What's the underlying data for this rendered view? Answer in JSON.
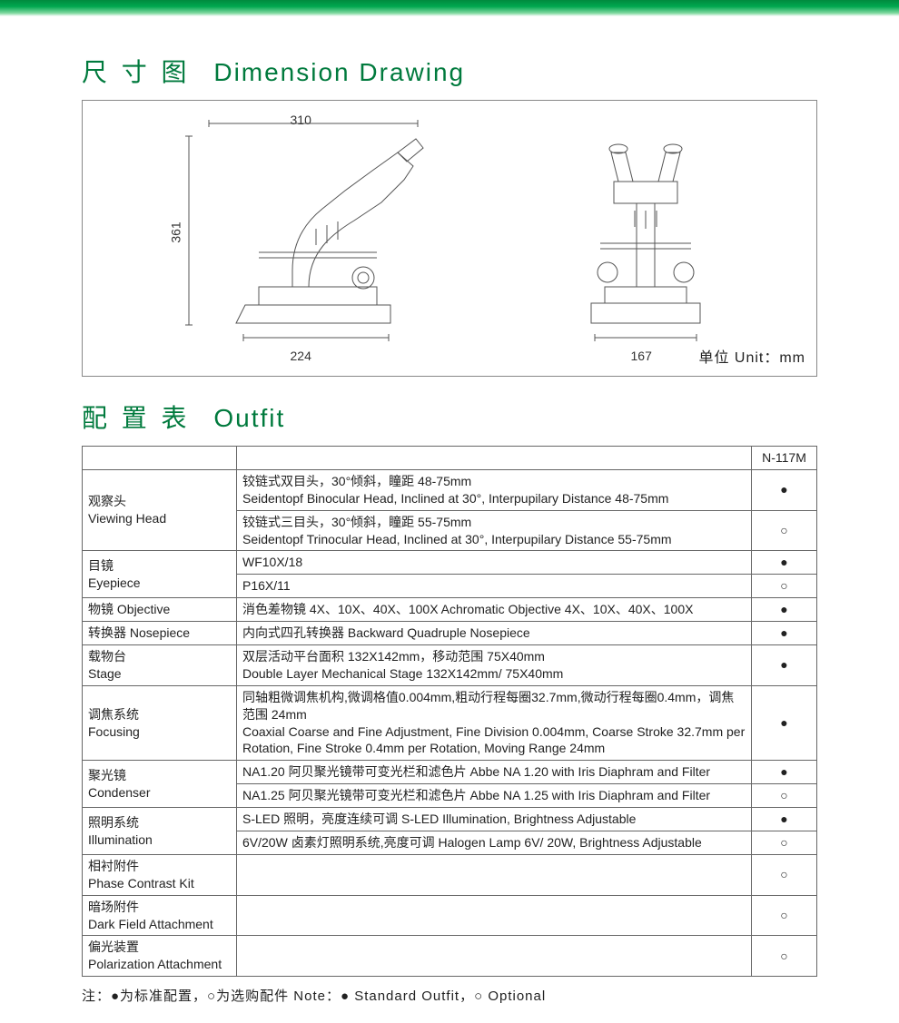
{
  "topbar": {
    "gradient_from": "#008a3e",
    "gradient_to": "#ffffff"
  },
  "dimension": {
    "title_cn": "尺 寸 图",
    "title_en": "Dimension  Drawing",
    "unit_label": "单位 Unit：mm",
    "dims": {
      "width_top": "310",
      "height_left": "361",
      "base_side": "224",
      "base_front": "167"
    },
    "stroke_color": "#555555",
    "bg": "#ffffff"
  },
  "outfit": {
    "title_cn": "配 置 表",
    "title_en": "Outfit",
    "model_header": "N-117M",
    "mark_std": "●",
    "mark_opt": "○",
    "rows": [
      {
        "cat_cn": "观察头",
        "cat_en": "Viewing Head",
        "items": [
          {
            "desc": "铰链式双目头，30°倾斜，瞳距 48-75mm\nSeidentopf Binocular Head, Inclined at 30°, Interpupilary Distance 48-75mm",
            "mark": "●"
          },
          {
            "desc": "铰链式三目头，30°倾斜，瞳距 55-75mm\nSeidentopf Trinocular Head, Inclined at 30°, Interpupilary Distance 55-75mm",
            "mark": "○"
          }
        ]
      },
      {
        "cat_cn": "目镜",
        "cat_en": "Eyepiece",
        "items": [
          {
            "desc": "WF10X/18",
            "mark": "●"
          },
          {
            "desc": "P16X/11",
            "mark": "○"
          }
        ]
      },
      {
        "cat_cn": "物镜 Objective",
        "cat_en": "",
        "items": [
          {
            "desc": "消色差物镜  4X、10X、40X、100X    Achromatic Objective 4X、10X、40X、100X",
            "mark": "●"
          }
        ]
      },
      {
        "cat_cn": "转换器 Nosepiece",
        "cat_en": "",
        "items": [
          {
            "desc": "内向式四孔转换器    Backward Quadruple Nosepiece",
            "mark": "●"
          }
        ]
      },
      {
        "cat_cn": "载物台",
        "cat_en": "Stage",
        "items": [
          {
            "desc": "双层活动平台面积 132X142mm，移动范围 75X40mm\nDouble Layer Mechanical Stage 132X142mm/ 75X40mm",
            "mark": "●"
          }
        ]
      },
      {
        "cat_cn": "调焦系统",
        "cat_en": "Focusing",
        "items": [
          {
            "desc": "同轴粗微调焦机构,微调格值0.004mm,粗动行程每圈32.7mm,微动行程每圈0.4mm，调焦范围 24mm\nCoaxial Coarse and Fine Adjustment, Fine Division 0.004mm, Coarse Stroke 32.7mm per Rotation, Fine Stroke 0.4mm per Rotation, Moving Range 24mm",
            "mark": "●"
          }
        ]
      },
      {
        "cat_cn": "聚光镜",
        "cat_en": "Condenser",
        "items": [
          {
            "desc": "NA1.20 阿贝聚光镜带可变光栏和滤色片  Abbe NA 1.20 with Iris Diaphram and Filter",
            "mark": "●"
          },
          {
            "desc": "NA1.25 阿贝聚光镜带可变光栏和滤色片  Abbe NA 1.25 with Iris Diaphram and Filter",
            "mark": "○"
          }
        ]
      },
      {
        "cat_cn": "照明系统",
        "cat_en": "Illumination",
        "items": [
          {
            "desc": "S-LED 照明，亮度连续可调    S-LED Illumination, Brightness Adjustable",
            "mark": "●"
          },
          {
            "desc": "6V/20W 卤素灯照明系统,亮度可调    Halogen Lamp 6V/ 20W, Brightness Adjustable",
            "mark": "○"
          }
        ]
      },
      {
        "cat_cn": "相衬附件",
        "cat_en": "Phase Contrast Kit",
        "items": [
          {
            "desc": "",
            "mark": "○"
          }
        ]
      },
      {
        "cat_cn": "暗场附件",
        "cat_en": "Dark Field Attachment",
        "items": [
          {
            "desc": "",
            "mark": "○"
          }
        ]
      },
      {
        "cat_cn": "偏光装置",
        "cat_en": "Polarization Attachment",
        "items": [
          {
            "desc": "",
            "mark": "○"
          }
        ]
      }
    ],
    "footnote": "注：●为标准配置，○为选购配件   Note：● Standard Outfit，○ Optional"
  },
  "colors": {
    "title": "#007a3d",
    "border": "#666666",
    "text": "#222222"
  }
}
